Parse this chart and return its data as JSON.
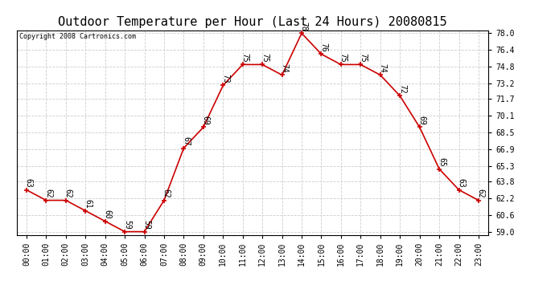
{
  "title": "Outdoor Temperature per Hour (Last 24 Hours) 20080815",
  "copyright_text": "Copyright 2008 Cartronics.com",
  "hours": [
    "00:00",
    "01:00",
    "02:00",
    "03:00",
    "04:00",
    "05:00",
    "06:00",
    "07:00",
    "08:00",
    "09:00",
    "10:00",
    "11:00",
    "12:00",
    "13:00",
    "14:00",
    "15:00",
    "16:00",
    "17:00",
    "18:00",
    "19:00",
    "20:00",
    "21:00",
    "22:00",
    "23:00"
  ],
  "temperatures": [
    63,
    62,
    62,
    61,
    60,
    59,
    59,
    62,
    67,
    69,
    73,
    75,
    75,
    74,
    78,
    76,
    75,
    75,
    74,
    72,
    69,
    65,
    63,
    62
  ],
  "line_color": "#cc0000",
  "marker_color": "#cc0000",
  "bg_color": "#ffffff",
  "grid_color": "#cccccc",
  "ylim_min": 59.0,
  "ylim_max": 78.0,
  "yticks": [
    59.0,
    60.6,
    62.2,
    63.8,
    65.3,
    66.9,
    68.5,
    70.1,
    71.7,
    73.2,
    74.8,
    76.4,
    78.0
  ],
  "title_fontsize": 11,
  "label_fontsize": 7,
  "tick_fontsize": 7,
  "copyright_fontsize": 6
}
